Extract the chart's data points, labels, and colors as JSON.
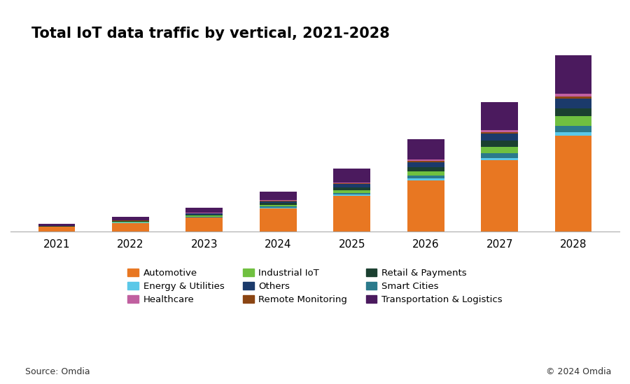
{
  "title": "Total IoT data traffic by vertical, 2021-2028",
  "years": [
    2021,
    2022,
    2023,
    2024,
    2025,
    2026,
    2027,
    2028
  ],
  "stack_order": [
    "Automotive",
    "Energy & Utilities",
    "Smart Cities",
    "Industrial IoT",
    "Retail & Payments",
    "Others",
    "Remote Monitoring",
    "Healthcare",
    "Transportation & Logistics"
  ],
  "segments": {
    "Automotive": [
      1.5,
      2.8,
      4.5,
      7.5,
      11.5,
      16.5,
      23.0,
      31.0
    ],
    "Energy & Utilities": [
      0.05,
      0.1,
      0.15,
      0.25,
      0.4,
      0.6,
      0.85,
      1.2
    ],
    "Smart Cities": [
      0.06,
      0.12,
      0.22,
      0.4,
      0.65,
      1.0,
      1.4,
      1.9
    ],
    "Industrial IoT": [
      0.06,
      0.14,
      0.28,
      0.5,
      0.85,
      1.4,
      2.2,
      3.1
    ],
    "Retail & Payments": [
      0.08,
      0.18,
      0.32,
      0.55,
      0.9,
      1.4,
      1.9,
      2.6
    ],
    "Others": [
      0.08,
      0.18,
      0.35,
      0.6,
      1.0,
      1.6,
      2.3,
      3.1
    ],
    "Remote Monitoring": [
      0.03,
      0.06,
      0.1,
      0.18,
      0.28,
      0.4,
      0.55,
      0.75
    ],
    "Healthcare": [
      0.04,
      0.08,
      0.13,
      0.22,
      0.32,
      0.45,
      0.6,
      0.8
    ],
    "Transportation & Logistics": [
      0.55,
      1.0,
      1.7,
      2.8,
      4.5,
      6.5,
      9.0,
      12.5
    ]
  },
  "colors": {
    "Automotive": "#E87722",
    "Energy & Utilities": "#5BC8E8",
    "Healthcare": "#C060A0",
    "Industrial IoT": "#70C040",
    "Others": "#1B3A6B",
    "Remote Monitoring": "#8B4513",
    "Retail & Payments": "#1B4030",
    "Smart Cities": "#2B7A8C",
    "Transportation & Logistics": "#4B1A5E"
  },
  "legend_order": [
    "Automotive",
    "Energy & Utilities",
    "Healthcare",
    "Industrial IoT",
    "Others",
    "Remote Monitoring",
    "Retail & Payments",
    "Smart Cities",
    "Transportation & Logistics"
  ],
  "source_text": "Source: Omdia",
  "copyright_text": "© 2024 Omdia",
  "background_color": "#ffffff",
  "bar_width": 0.5
}
